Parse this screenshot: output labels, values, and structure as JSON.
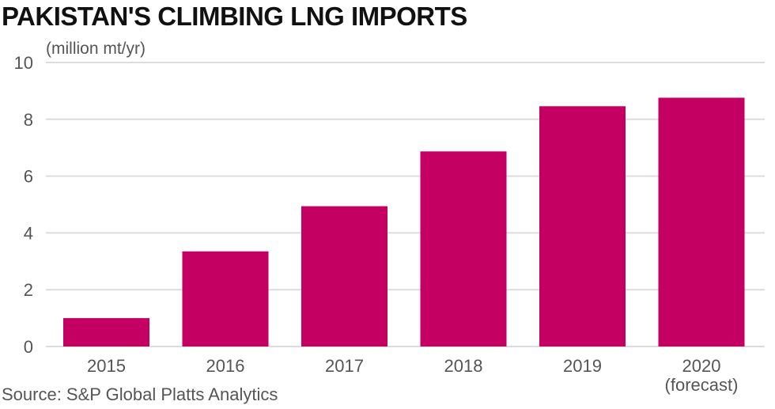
{
  "chart_data": {
    "type": "bar",
    "title": "PAKISTAN'S CLIMBING LNG IMPORTS",
    "unit_label": "(million mt/yr)",
    "categories": [
      "2015",
      "2016",
      "2017",
      "2018",
      "2019",
      "2020"
    ],
    "category_sublabels": [
      "",
      "",
      "",
      "",
      "",
      "(forecast)"
    ],
    "values": [
      1.0,
      3.35,
      4.94,
      6.87,
      8.46,
      8.76
    ],
    "ylim": [
      0,
      10
    ],
    "yticks": [
      "0",
      "2",
      "4",
      "6",
      "8",
      "10"
    ],
    "grid": true,
    "bar_color": "#C40063",
    "source": "Source: S&P Global Platts Analytics"
  }
}
